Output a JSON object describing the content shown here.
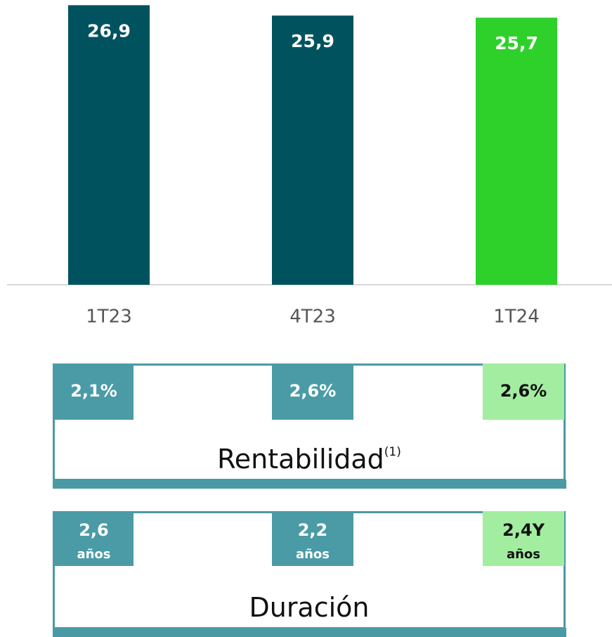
{
  "chart_data": {
    "type": "bar",
    "categories": [
      "1T23",
      "4T23",
      "1T24"
    ],
    "values": [
      26.9,
      25.9,
      25.7
    ],
    "value_labels": [
      "26,9",
      "25,9",
      "25,7"
    ],
    "colors": [
      "#00525f",
      "#00525f",
      "#2dd12a"
    ],
    "ylim": [
      0,
      27.4
    ]
  },
  "panels": [
    {
      "title": "Rentabilidad",
      "superscript": "(1)",
      "items": [
        {
          "value": "2,1%"
        },
        {
          "value": "2,6%"
        },
        {
          "value": "2,6%"
        }
      ],
      "tile_colors": [
        "#4a9ba6",
        "#4a9ba6",
        "#a3eda0"
      ],
      "text_colors": [
        "#ffffff",
        "#ffffff",
        "#111111"
      ]
    },
    {
      "title": "Duración",
      "items": [
        {
          "value": "2,6",
          "unit": "años"
        },
        {
          "value": "2,2",
          "unit": "años"
        },
        {
          "value": "2,4Y",
          "unit": "años"
        }
      ],
      "tile_colors": [
        "#4a9ba6",
        "#4a9ba6",
        "#a3eda0"
      ],
      "text_colors": [
        "#ffffff",
        "#ffffff",
        "#111111"
      ]
    }
  ]
}
